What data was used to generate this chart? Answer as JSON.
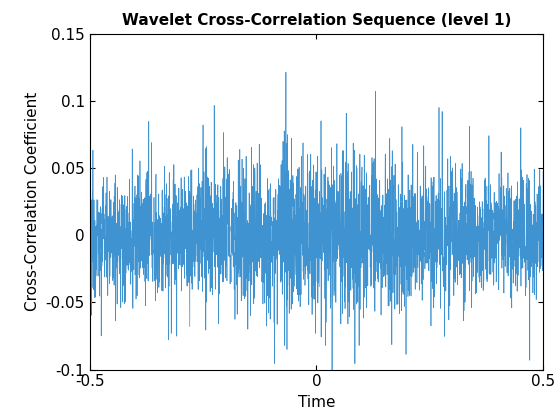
{
  "title": "Wavelet Cross-Correlation Sequence (level 1)",
  "xlabel": "Time",
  "ylabel": "Cross-Correlation Coefficient",
  "xlim": [
    -0.5,
    0.5
  ],
  "ylim": [
    -0.1,
    0.15
  ],
  "yticks": [
    -0.1,
    -0.05,
    0,
    0.05,
    0.1,
    0.15
  ],
  "xticks": [
    -0.5,
    0,
    0.5
  ],
  "line_color": "#3F93D0",
  "n_points": 3000,
  "seed": 12345,
  "background_color": "#ffffff",
  "title_fontsize": 11,
  "label_fontsize": 11,
  "tick_fontsize": 11
}
